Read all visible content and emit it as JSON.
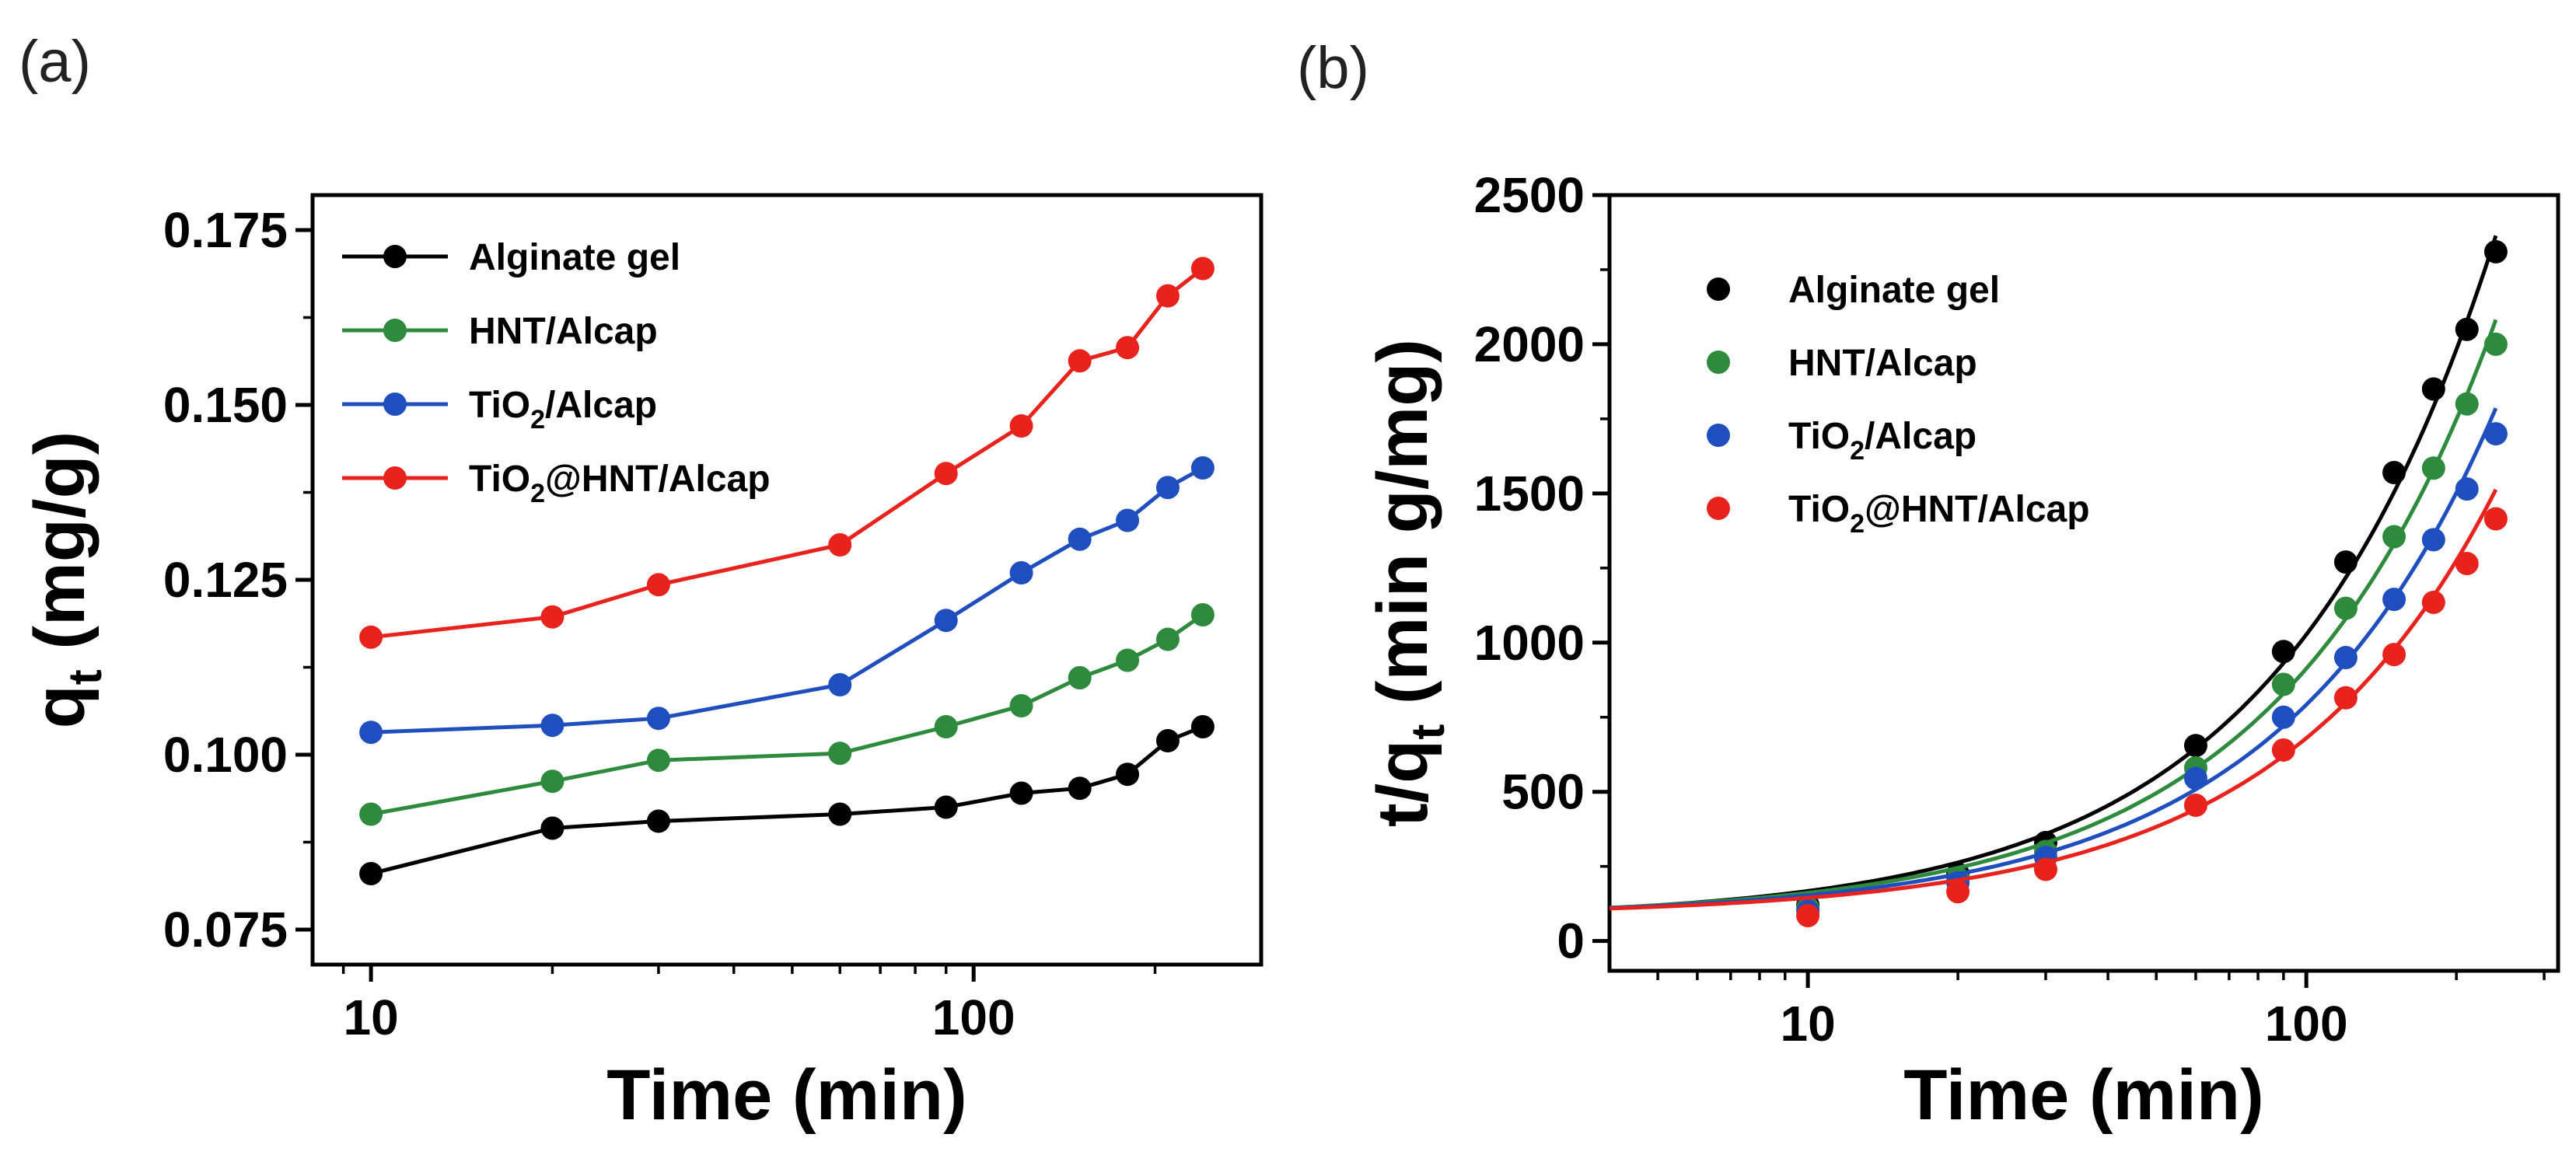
{
  "chart_data": [
    {
      "panel_label": "(a)",
      "type": "line",
      "xscale": "log",
      "xlabel": "Time (min)",
      "ylabel_main": "q",
      "ylabel_sub": "t",
      "ylabel_rest": " (mg/g)",
      "xlim": [
        8,
        300
      ],
      "ylim": [
        0.07,
        0.18
      ],
      "xticks": [
        10,
        100
      ],
      "xtick_labels": [
        "10",
        "100"
      ],
      "yticks": [
        0.075,
        0.1,
        0.125,
        0.15,
        0.175
      ],
      "ytick_labels": [
        "0.075",
        "0.100",
        "0.125",
        "0.150",
        "0.175"
      ],
      "legend_position": "top-left",
      "x": [
        10,
        20,
        30,
        60,
        90,
        120,
        150,
        180,
        210,
        240
      ],
      "series": [
        {
          "name": "Alginate gel",
          "name_main": "Alginate gel",
          "name_sub": "",
          "name_rest": "",
          "color": "#000000",
          "values": [
            0.083,
            0.0895,
            0.0905,
            0.0915,
            0.0925,
            0.0945,
            0.0952,
            0.0972,
            0.102,
            0.104
          ]
        },
        {
          "name": "HNT/Alcap",
          "name_main": "HNT/Alcap",
          "name_sub": "",
          "name_rest": "",
          "color": "#2e8b3e",
          "values": [
            0.0915,
            0.0962,
            0.0992,
            0.1002,
            0.104,
            0.107,
            0.111,
            0.1135,
            0.1165,
            0.12
          ]
        },
        {
          "name": "TiO2/Alcap",
          "name_main": "TiO",
          "name_sub": "2",
          "name_rest": "/Alcap",
          "color": "#1f4fbf",
          "values": [
            0.1032,
            0.1042,
            0.1052,
            0.11,
            0.1192,
            0.126,
            0.1308,
            0.1335,
            0.1382,
            0.141
          ]
        },
        {
          "name": "TiO2@HNT/Alcap",
          "name_main": "TiO",
          "name_sub": "2",
          "name_rest": "@HNT/Alcap",
          "color": "#e8221d",
          "values": [
            0.1168,
            0.1197,
            0.1243,
            0.13,
            0.1402,
            0.147,
            0.1563,
            0.1582,
            0.1656,
            0.1695
          ]
        }
      ]
    },
    {
      "panel_label": "(b)",
      "type": "scatter",
      "xscale": "log",
      "xlabel": "Time (min)",
      "ylabel_main": "t/q",
      "ylabel_sub": "t",
      "ylabel_rest": " (min g/mg)",
      "xlim": [
        4,
        320
      ],
      "ylim": [
        -100,
        2500
      ],
      "xticks": [
        10,
        100
      ],
      "xtick_labels": [
        "10",
        "100"
      ],
      "yticks": [
        0,
        500,
        1000,
        1500,
        2000,
        2500
      ],
      "ytick_labels": [
        "0",
        "500",
        "1000",
        "1500",
        "2000",
        "2500"
      ],
      "legend_position": "top-left",
      "x": [
        10,
        20,
        30,
        60,
        90,
        120,
        150,
        180,
        210,
        240
      ],
      "fit_line": {
        "type": "linear-in-time",
        "x_range": [
          4,
          240
        ]
      },
      "series": [
        {
          "name": "Alginate gel",
          "name_main": "Alginate gel",
          "name_sub": "",
          "name_rest": "",
          "color": "#000000",
          "values": [
            120,
            225,
            330,
            655,
            970,
            1270,
            1570,
            1850,
            2050,
            2310
          ],
          "fit": {
            "intercept": 72,
            "slope": 9.55
          }
        },
        {
          "name": "HNT/Alcap",
          "name_main": "HNT/Alcap",
          "name_sub": "",
          "name_rest": "",
          "color": "#2e8b3e",
          "values": [
            110,
            210,
            300,
            580,
            860,
            1115,
            1355,
            1585,
            1800,
            2000
          ],
          "fit": {
            "intercept": 78,
            "slope": 8.35
          }
        },
        {
          "name": "TiO2/Alcap",
          "name_main": "TiO",
          "name_sub": "2",
          "name_rest": "/Alcap",
          "color": "#1f4fbf",
          "values": [
            100,
            195,
            280,
            545,
            750,
            950,
            1145,
            1345,
            1515,
            1700
          ],
          "fit": {
            "intercept": 82,
            "slope": 7.1
          }
        },
        {
          "name": "TiO2@HNT/Alcap",
          "name_main": "TiO",
          "name_sub": "2",
          "name_rest": "@HNT/Alcap",
          "color": "#e8221d",
          "values": [
            85,
            165,
            240,
            455,
            640,
            815,
            960,
            1135,
            1265,
            1415
          ],
          "fit": {
            "intercept": 85,
            "slope": 5.95
          }
        }
      ]
    }
  ]
}
